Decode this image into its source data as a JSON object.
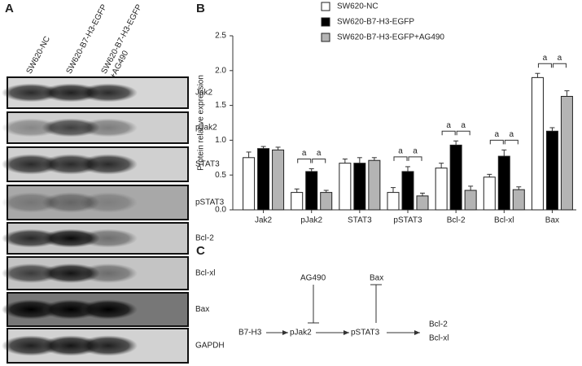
{
  "panel_labels": [
    "A",
    "B",
    "C"
  ],
  "blot": {
    "lanes": [
      "SW620-NC",
      "SW620-B7-H3-EGFP",
      "SW620-B7-H3-EGFP\n+AG490"
    ],
    "proteins": [
      "Jak2",
      "pJak2",
      "STAT3",
      "pSTAT3",
      "Bcl-2",
      "Bcl-xl",
      "Bax",
      "GAPDH"
    ]
  },
  "chart_data": {
    "type": "bar",
    "y_label": "Protein relative expression",
    "categories": [
      "Jak2",
      "pJak2",
      "STAT3",
      "pSTAT3",
      "Bcl-2",
      "Bcl-xl",
      "Bax"
    ],
    "series": [
      {
        "name": "SW620-NC",
        "color": "#ffffff",
        "values": [
          0.75,
          0.25,
          0.67,
          0.25,
          0.6,
          0.47,
          1.9
        ],
        "errors": [
          0.08,
          0.05,
          0.06,
          0.07,
          0.07,
          0.04,
          0.06
        ]
      },
      {
        "name": "SW620-B7-H3-EGFP",
        "color": "#000000",
        "values": [
          0.88,
          0.55,
          0.67,
          0.55,
          0.93,
          0.77,
          1.13
        ],
        "errors": [
          0.03,
          0.04,
          0.08,
          0.07,
          0.06,
          0.09,
          0.05
        ]
      },
      {
        "name": "SW620-B7-H3-EGFP+AG490",
        "color": "#b4b4b4",
        "values": [
          0.86,
          0.25,
          0.71,
          0.2,
          0.28,
          0.29,
          1.63
        ],
        "errors": [
          0.04,
          0.03,
          0.04,
          0.04,
          0.06,
          0.04,
          0.08
        ]
      }
    ],
    "ylim": [
      0,
      2.5
    ],
    "yticks": [
      {
        "value": 0,
        "label": "0.0"
      },
      0.5,
      {
        "value": 1,
        "label": "1.0"
      },
      1.5,
      {
        "value": 2,
        "label": "2.0"
      },
      2.5
    ],
    "legend": "top",
    "significance": [
      {
        "label": "a",
        "category": "pJak2",
        "between": [
          "SW620-NC",
          "SW620-B7-H3-EGFP"
        ]
      },
      {
        "label": "a",
        "category": "pJak2",
        "between": [
          "SW620-B7-H3-EGFP",
          "SW620-B7-H3-EGFP+AG490"
        ]
      },
      {
        "label": "a",
        "category": "pSTAT3",
        "between": [
          "SW620-NC",
          "SW620-B7-H3-EGFP"
        ]
      },
      {
        "label": "a",
        "category": "pSTAT3",
        "between": [
          "SW620-B7-H3-EGFP",
          "SW620-B7-H3-EGFP+AG490"
        ]
      },
      {
        "label": "a",
        "category": "Bcl-2",
        "between": [
          "SW620-NC",
          "SW620-B7-H3-EGFP"
        ]
      },
      {
        "label": "a",
        "category": "Bcl-2",
        "between": [
          "SW620-B7-H3-EGFP",
          "SW620-B7-H3-EGFP+AG490"
        ]
      },
      {
        "label": "a",
        "category": "Bcl-xl",
        "between": [
          "SW620-NC",
          "SW620-B7-H3-EGFP"
        ]
      },
      {
        "label": "a",
        "category": "Bcl-xl",
        "between": [
          "SW620-B7-H3-EGFP",
          "SW620-B7-H3-EGFP+AG490"
        ]
      },
      {
        "label": "a",
        "category": "Bax",
        "between": [
          "SW620-NC",
          "SW620-B7-H3-EGFP"
        ]
      },
      {
        "label": "a",
        "category": "Bax",
        "between": [
          "SW620-B7-H3-EGFP",
          "SW620-B7-H3-EGFP+AG490"
        ]
      }
    ]
  },
  "pathway": {
    "nodes": [
      "B7-H3",
      "pJak2",
      "pSTAT3",
      "Bcl-2",
      "Bcl-xl",
      "AG490",
      "Bax"
    ]
  }
}
